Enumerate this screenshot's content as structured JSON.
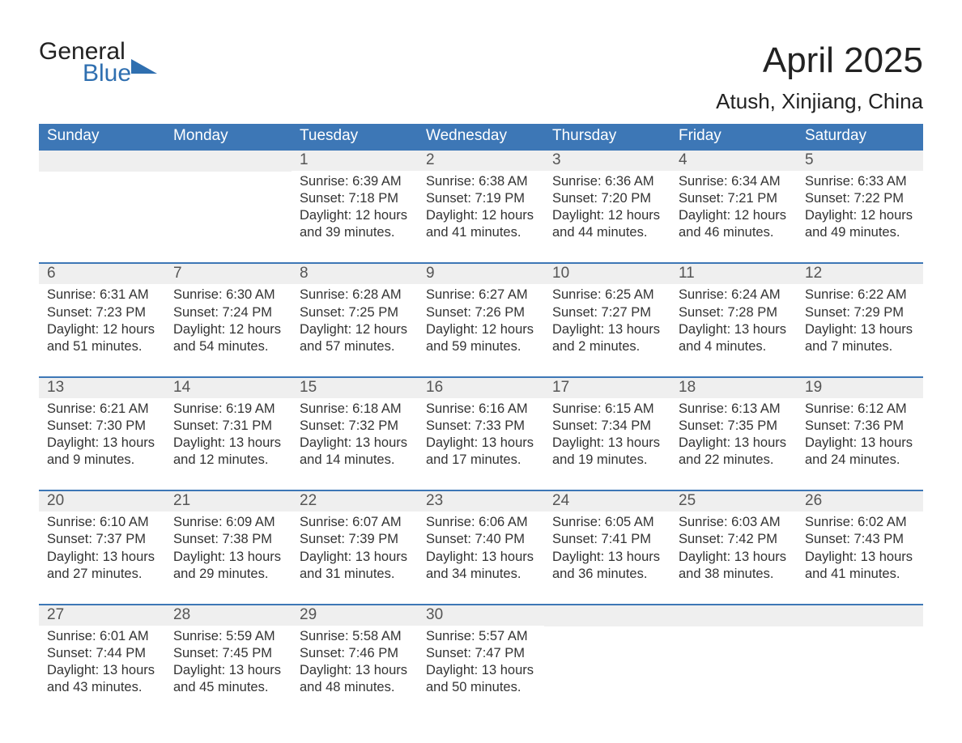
{
  "logo": {
    "line1": "General",
    "line2": "Blue"
  },
  "title": "April 2025",
  "location": "Atush, Xinjiang, China",
  "colors": {
    "header_bg": "#3d77b6",
    "header_text": "#ffffff",
    "daynum_bg": "#efefef",
    "body_text": "#333333",
    "logo_blue": "#2f6fb0",
    "rule": "#3d77b6"
  },
  "dow": [
    "Sunday",
    "Monday",
    "Tuesday",
    "Wednesday",
    "Thursday",
    "Friday",
    "Saturday"
  ],
  "weeks": [
    [
      {
        "n": "",
        "lines": []
      },
      {
        "n": "",
        "lines": []
      },
      {
        "n": "1",
        "lines": [
          "Sunrise: 6:39 AM",
          "Sunset: 7:18 PM",
          "Daylight: 12 hours",
          "and 39 minutes."
        ]
      },
      {
        "n": "2",
        "lines": [
          "Sunrise: 6:38 AM",
          "Sunset: 7:19 PM",
          "Daylight: 12 hours",
          "and 41 minutes."
        ]
      },
      {
        "n": "3",
        "lines": [
          "Sunrise: 6:36 AM",
          "Sunset: 7:20 PM",
          "Daylight: 12 hours",
          "and 44 minutes."
        ]
      },
      {
        "n": "4",
        "lines": [
          "Sunrise: 6:34 AM",
          "Sunset: 7:21 PM",
          "Daylight: 12 hours",
          "and 46 minutes."
        ]
      },
      {
        "n": "5",
        "lines": [
          "Sunrise: 6:33 AM",
          "Sunset: 7:22 PM",
          "Daylight: 12 hours",
          "and 49 minutes."
        ]
      }
    ],
    [
      {
        "n": "6",
        "lines": [
          "Sunrise: 6:31 AM",
          "Sunset: 7:23 PM",
          "Daylight: 12 hours",
          "and 51 minutes."
        ]
      },
      {
        "n": "7",
        "lines": [
          "Sunrise: 6:30 AM",
          "Sunset: 7:24 PM",
          "Daylight: 12 hours",
          "and 54 minutes."
        ]
      },
      {
        "n": "8",
        "lines": [
          "Sunrise: 6:28 AM",
          "Sunset: 7:25 PM",
          "Daylight: 12 hours",
          "and 57 minutes."
        ]
      },
      {
        "n": "9",
        "lines": [
          "Sunrise: 6:27 AM",
          "Sunset: 7:26 PM",
          "Daylight: 12 hours",
          "and 59 minutes."
        ]
      },
      {
        "n": "10",
        "lines": [
          "Sunrise: 6:25 AM",
          "Sunset: 7:27 PM",
          "Daylight: 13 hours",
          "and 2 minutes."
        ]
      },
      {
        "n": "11",
        "lines": [
          "Sunrise: 6:24 AM",
          "Sunset: 7:28 PM",
          "Daylight: 13 hours",
          "and 4 minutes."
        ]
      },
      {
        "n": "12",
        "lines": [
          "Sunrise: 6:22 AM",
          "Sunset: 7:29 PM",
          "Daylight: 13 hours",
          "and 7 minutes."
        ]
      }
    ],
    [
      {
        "n": "13",
        "lines": [
          "Sunrise: 6:21 AM",
          "Sunset: 7:30 PM",
          "Daylight: 13 hours",
          "and 9 minutes."
        ]
      },
      {
        "n": "14",
        "lines": [
          "Sunrise: 6:19 AM",
          "Sunset: 7:31 PM",
          "Daylight: 13 hours",
          "and 12 minutes."
        ]
      },
      {
        "n": "15",
        "lines": [
          "Sunrise: 6:18 AM",
          "Sunset: 7:32 PM",
          "Daylight: 13 hours",
          "and 14 minutes."
        ]
      },
      {
        "n": "16",
        "lines": [
          "Sunrise: 6:16 AM",
          "Sunset: 7:33 PM",
          "Daylight: 13 hours",
          "and 17 minutes."
        ]
      },
      {
        "n": "17",
        "lines": [
          "Sunrise: 6:15 AM",
          "Sunset: 7:34 PM",
          "Daylight: 13 hours",
          "and 19 minutes."
        ]
      },
      {
        "n": "18",
        "lines": [
          "Sunrise: 6:13 AM",
          "Sunset: 7:35 PM",
          "Daylight: 13 hours",
          "and 22 minutes."
        ]
      },
      {
        "n": "19",
        "lines": [
          "Sunrise: 6:12 AM",
          "Sunset: 7:36 PM",
          "Daylight: 13 hours",
          "and 24 minutes."
        ]
      }
    ],
    [
      {
        "n": "20",
        "lines": [
          "Sunrise: 6:10 AM",
          "Sunset: 7:37 PM",
          "Daylight: 13 hours",
          "and 27 minutes."
        ]
      },
      {
        "n": "21",
        "lines": [
          "Sunrise: 6:09 AM",
          "Sunset: 7:38 PM",
          "Daylight: 13 hours",
          "and 29 minutes."
        ]
      },
      {
        "n": "22",
        "lines": [
          "Sunrise: 6:07 AM",
          "Sunset: 7:39 PM",
          "Daylight: 13 hours",
          "and 31 minutes."
        ]
      },
      {
        "n": "23",
        "lines": [
          "Sunrise: 6:06 AM",
          "Sunset: 7:40 PM",
          "Daylight: 13 hours",
          "and 34 minutes."
        ]
      },
      {
        "n": "24",
        "lines": [
          "Sunrise: 6:05 AM",
          "Sunset: 7:41 PM",
          "Daylight: 13 hours",
          "and 36 minutes."
        ]
      },
      {
        "n": "25",
        "lines": [
          "Sunrise: 6:03 AM",
          "Sunset: 7:42 PM",
          "Daylight: 13 hours",
          "and 38 minutes."
        ]
      },
      {
        "n": "26",
        "lines": [
          "Sunrise: 6:02 AM",
          "Sunset: 7:43 PM",
          "Daylight: 13 hours",
          "and 41 minutes."
        ]
      }
    ],
    [
      {
        "n": "27",
        "lines": [
          "Sunrise: 6:01 AM",
          "Sunset: 7:44 PM",
          "Daylight: 13 hours",
          "and 43 minutes."
        ]
      },
      {
        "n": "28",
        "lines": [
          "Sunrise: 5:59 AM",
          "Sunset: 7:45 PM",
          "Daylight: 13 hours",
          "and 45 minutes."
        ]
      },
      {
        "n": "29",
        "lines": [
          "Sunrise: 5:58 AM",
          "Sunset: 7:46 PM",
          "Daylight: 13 hours",
          "and 48 minutes."
        ]
      },
      {
        "n": "30",
        "lines": [
          "Sunrise: 5:57 AM",
          "Sunset: 7:47 PM",
          "Daylight: 13 hours",
          "and 50 minutes."
        ]
      },
      {
        "n": "",
        "lines": []
      },
      {
        "n": "",
        "lines": []
      },
      {
        "n": "",
        "lines": []
      }
    ]
  ]
}
